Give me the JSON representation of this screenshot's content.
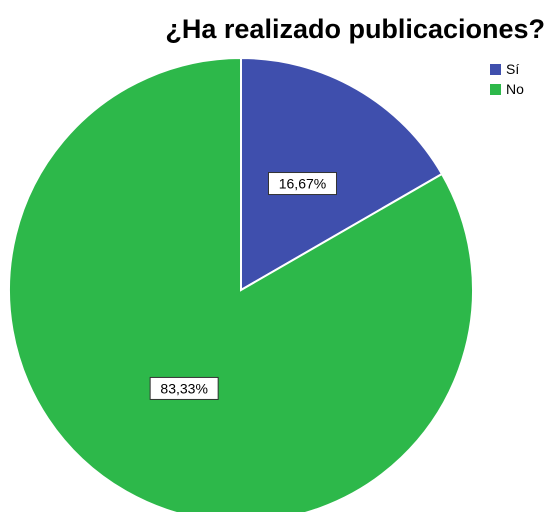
{
  "chart_data": {
    "type": "pie",
    "title": "¿Ha realizado publicaciones?",
    "categories": [
      "Sí",
      "No"
    ],
    "values": [
      16.67,
      83.33
    ],
    "data_labels": [
      "16,67%",
      "83,33%"
    ],
    "colors": [
      "#3f4fad",
      "#2db84a"
    ],
    "start_angle_deg": 0,
    "direction": "clockwise",
    "legend": "top-right"
  }
}
